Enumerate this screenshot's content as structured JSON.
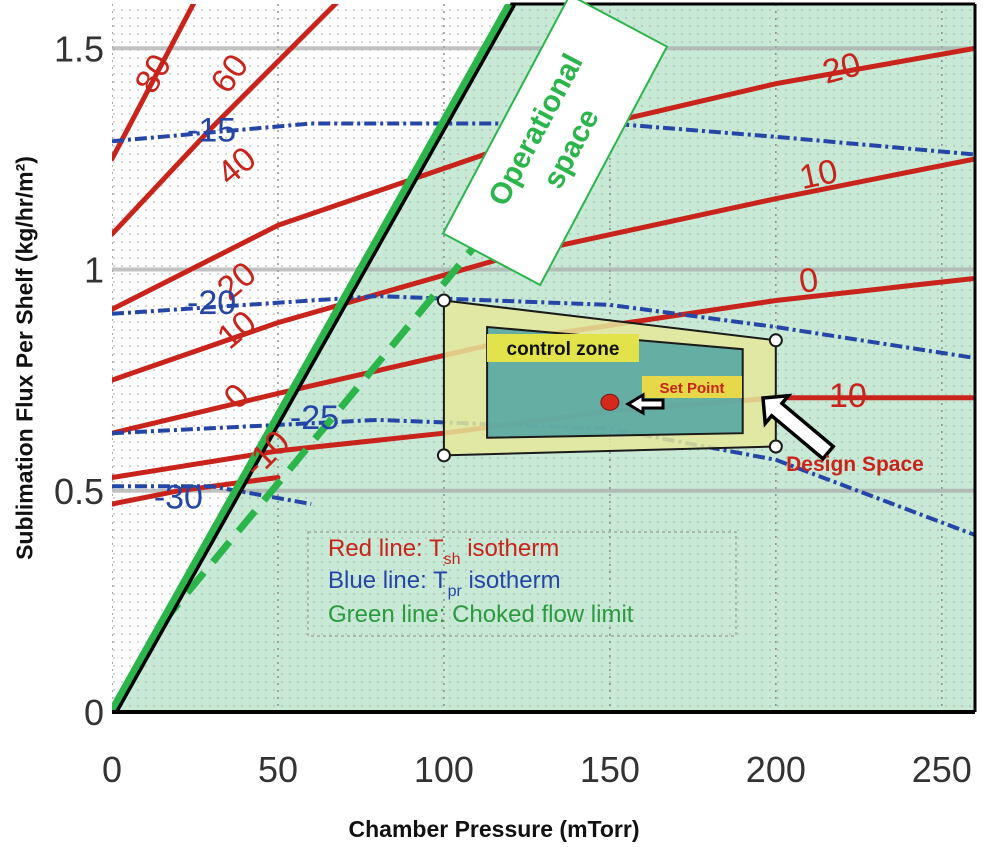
{
  "chart_data": {
    "type": "line",
    "xlabel": "Chamber Pressure (mTorr)",
    "ylabel": "Sublimation Flux Per Shelf (kg/hr/m²)",
    "xlim": [
      0,
      260
    ],
    "ylim": [
      0,
      1.6
    ],
    "x_ticks": [
      "0",
      "50",
      "100",
      "150",
      "200",
      "250"
    ],
    "y_ticks": [
      "0",
      "0.5",
      "1",
      "1.5"
    ],
    "grid": "on",
    "red_isotherms": [
      {
        "label": "80",
        "points": [
          [
            0,
            1.62
          ],
          [
            15,
            1.8
          ]
        ]
      },
      {
        "label": "60",
        "points": [
          [
            0,
            1.25
          ],
          [
            35,
            1.75
          ]
        ]
      },
      {
        "label": "40",
        "points": [
          [
            0,
            1.08
          ],
          [
            30,
            1.32
          ],
          [
            70,
            1.62
          ]
        ]
      },
      {
        "label": "20",
        "points": [
          [
            0,
            0.91
          ],
          [
            50,
            1.1
          ],
          [
            120,
            1.28
          ],
          [
            200,
            1.42
          ],
          [
            260,
            1.5
          ]
        ]
      },
      {
        "label": "10",
        "points": [
          [
            0,
            0.75
          ],
          [
            50,
            0.88
          ],
          [
            120,
            1.03
          ],
          [
            200,
            1.16
          ],
          [
            260,
            1.25
          ]
        ]
      },
      {
        "label": "0",
        "points": [
          [
            0,
            0.63
          ],
          [
            50,
            0.72
          ],
          [
            120,
            0.84
          ],
          [
            200,
            0.93
          ],
          [
            260,
            0.98
          ]
        ]
      },
      {
        "label": "-10",
        "points": [
          [
            0,
            0.53
          ],
          [
            50,
            0.59
          ],
          [
            100,
            0.63
          ],
          [
            150,
            0.68
          ],
          [
            200,
            0.71
          ],
          [
            260,
            0.71
          ]
        ]
      },
      {
        "label": "",
        "points": [
          [
            0,
            0.47
          ],
          [
            20,
            0.5
          ],
          [
            50,
            0.53
          ]
        ]
      }
    ],
    "blue_isotherms": [
      {
        "label": "-15",
        "points": [
          [
            0,
            1.29
          ],
          [
            60,
            1.33
          ],
          [
            150,
            1.33
          ],
          [
            200,
            1.3
          ],
          [
            260,
            1.26
          ]
        ]
      },
      {
        "label": "-20",
        "points": [
          [
            0,
            0.9
          ],
          [
            80,
            0.94
          ],
          [
            150,
            0.92
          ],
          [
            200,
            0.87
          ],
          [
            260,
            0.8
          ]
        ]
      },
      {
        "label": "-25",
        "points": [
          [
            0,
            0.63
          ],
          [
            80,
            0.66
          ],
          [
            150,
            0.64
          ],
          [
            200,
            0.57
          ],
          [
            260,
            0.4
          ]
        ]
      },
      {
        "label": "-30",
        "points": [
          [
            0,
            0.51
          ],
          [
            30,
            0.51
          ],
          [
            60,
            0.47
          ]
        ]
      }
    ],
    "choked_flow_limit": {
      "points": [
        [
          0,
          0
        ],
        [
          120,
          1.6
        ]
      ]
    },
    "choked_flow_margin": {
      "points": [
        [
          15,
          0.2
        ],
        [
          130,
          1.24
        ]
      ]
    },
    "design_space": {
      "points": [
        [
          100,
          0.93
        ],
        [
          200,
          0.84
        ],
        [
          200,
          0.6
        ],
        [
          100,
          0.58
        ]
      ]
    },
    "control_zone": {
      "points": [
        [
          113,
          0.87
        ],
        [
          190,
          0.82
        ],
        [
          190,
          0.63
        ],
        [
          113,
          0.62
        ]
      ]
    },
    "set_point": {
      "x": 150,
      "y": 0.7
    },
    "annotations": {
      "operational_space": "Operational space",
      "control_zone": "control zone",
      "set_point": "Set Point",
      "design_space": "Design Space",
      "legend_red_pre": "Red line: T",
      "legend_red_sub": "sh",
      "legend_red_post": " isotherm",
      "legend_blue_pre": "Blue line: T",
      "legend_blue_sub": "pr",
      "legend_blue_post": " isotherm",
      "legend_green": "Green line: Choked flow limit"
    },
    "colors": {
      "red": "#c8241c",
      "blue": "#2546a6",
      "green": "#2bb54b",
      "operational_fill": "#c7e9d6",
      "design_fill": "#e4e79a",
      "control_fill": "#4fa3a5"
    }
  }
}
